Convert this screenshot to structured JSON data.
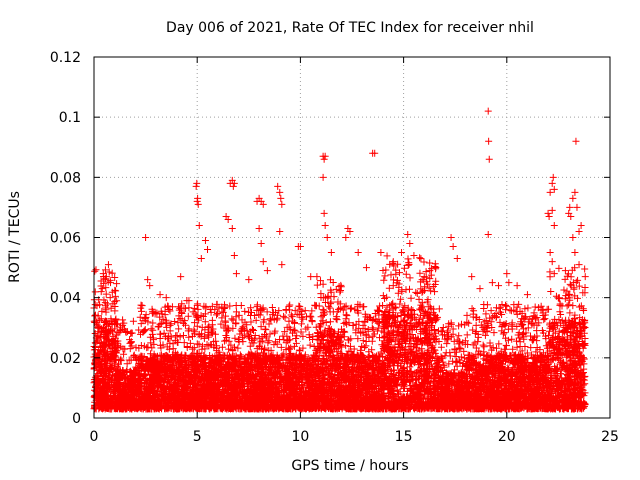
{
  "chart_data": {
    "type": "scatter",
    "title": "Day 006 of 2021, Rate Of TEC Index for receiver nhil",
    "xlabel": "GPS time / hours",
    "ylabel": "ROTI / TECUs",
    "xlim": [
      0,
      25
    ],
    "ylim": [
      0,
      0.12
    ],
    "grid": true,
    "marker": "+",
    "color": "#ff0000",
    "x_ticks": [
      0,
      5,
      10,
      15,
      20,
      25
    ],
    "x_tick_labels": [
      "0",
      "5",
      "10",
      "15",
      "20",
      "25"
    ],
    "y_ticks": [
      0,
      0.02,
      0.04,
      0.06,
      0.08,
      0.1,
      0.12
    ],
    "y_tick_labels": [
      "0",
      "0.02",
      "0.04",
      "0.06",
      "0.08",
      "0.1",
      "0.12"
    ],
    "data_x_range": [
      0,
      23.8
    ],
    "series": [
      {
        "name": "ROTI",
        "points": [
          [
            0.1,
            0.003
          ],
          [
            0.15,
            0.031
          ],
          [
            0.2,
            0.034
          ],
          [
            0.35,
            0.042
          ],
          [
            0.4,
            0.043
          ],
          [
            0.45,
            0.048
          ],
          [
            0.6,
            0.047
          ],
          [
            0.7,
            0.051
          ],
          [
            0.8,
            0.045
          ],
          [
            0.9,
            0.025
          ],
          [
            1.0,
            0.022
          ],
          [
            2.5,
            0.06
          ],
          [
            2.6,
            0.046
          ],
          [
            2.7,
            0.044
          ],
          [
            3.2,
            0.041
          ],
          [
            3.5,
            0.04
          ],
          [
            3.8,
            0.037
          ],
          [
            4.2,
            0.047
          ],
          [
            4.5,
            0.039
          ],
          [
            4.6,
            0.039
          ],
          [
            4.95,
            0.077
          ],
          [
            4.98,
            0.078
          ],
          [
            5.0,
            0.072
          ],
          [
            5.02,
            0.073
          ],
          [
            5.05,
            0.071
          ],
          [
            5.1,
            0.064
          ],
          [
            5.2,
            0.053
          ],
          [
            5.4,
            0.059
          ],
          [
            5.5,
            0.056
          ],
          [
            6.4,
            0.067
          ],
          [
            6.5,
            0.066
          ],
          [
            6.6,
            0.078
          ],
          [
            6.7,
            0.079
          ],
          [
            6.75,
            0.077
          ],
          [
            6.8,
            0.078
          ],
          [
            6.7,
            0.063
          ],
          [
            6.8,
            0.054
          ],
          [
            6.9,
            0.048
          ],
          [
            7.5,
            0.046
          ],
          [
            7.9,
            0.072
          ],
          [
            8.0,
            0.073
          ],
          [
            8.1,
            0.072
          ],
          [
            8.2,
            0.071
          ],
          [
            8.0,
            0.063
          ],
          [
            8.1,
            0.058
          ],
          [
            8.2,
            0.052
          ],
          [
            8.4,
            0.049
          ],
          [
            8.9,
            0.077
          ],
          [
            9.0,
            0.075
          ],
          [
            9.05,
            0.073
          ],
          [
            9.1,
            0.071
          ],
          [
            9.0,
            0.062
          ],
          [
            9.1,
            0.051
          ],
          [
            9.9,
            0.057
          ],
          [
            10.0,
            0.057
          ],
          [
            10.5,
            0.047
          ],
          [
            10.8,
            0.047
          ],
          [
            11.1,
            0.087
          ],
          [
            11.15,
            0.086
          ],
          [
            11.2,
            0.087
          ],
          [
            11.1,
            0.08
          ],
          [
            11.15,
            0.068
          ],
          [
            11.2,
            0.064
          ],
          [
            11.3,
            0.06
          ],
          [
            11.5,
            0.055
          ],
          [
            12.2,
            0.06
          ],
          [
            12.3,
            0.063
          ],
          [
            12.4,
            0.062
          ],
          [
            12.8,
            0.055
          ],
          [
            13.2,
            0.05
          ],
          [
            13.5,
            0.088
          ],
          [
            13.6,
            0.088
          ],
          [
            13.9,
            0.055
          ],
          [
            14.5,
            0.052
          ],
          [
            14.9,
            0.055
          ],
          [
            15.2,
            0.061
          ],
          [
            15.3,
            0.058
          ],
          [
            15.5,
            0.054
          ],
          [
            16.0,
            0.047
          ],
          [
            16.5,
            0.042
          ],
          [
            17.3,
            0.06
          ],
          [
            17.4,
            0.057
          ],
          [
            17.6,
            0.053
          ],
          [
            18.3,
            0.047
          ],
          [
            18.7,
            0.043
          ],
          [
            19.1,
            0.102
          ],
          [
            19.12,
            0.092
          ],
          [
            19.15,
            0.086
          ],
          [
            19.1,
            0.061
          ],
          [
            19.3,
            0.045
          ],
          [
            19.6,
            0.044
          ],
          [
            20.0,
            0.048
          ],
          [
            20.1,
            0.045
          ],
          [
            20.5,
            0.044
          ],
          [
            21.0,
            0.041
          ],
          [
            22.0,
            0.068
          ],
          [
            22.05,
            0.067
          ],
          [
            22.1,
            0.075
          ],
          [
            22.2,
            0.078
          ],
          [
            22.25,
            0.08
          ],
          [
            22.3,
            0.076
          ],
          [
            22.2,
            0.069
          ],
          [
            22.3,
            0.064
          ],
          [
            22.1,
            0.055
          ],
          [
            22.2,
            0.052
          ],
          [
            22.3,
            0.048
          ],
          [
            23.0,
            0.068
          ],
          [
            23.05,
            0.07
          ],
          [
            23.1,
            0.067
          ],
          [
            23.2,
            0.073
          ],
          [
            23.3,
            0.075
          ],
          [
            23.35,
            0.092
          ],
          [
            23.4,
            0.07
          ],
          [
            23.5,
            0.062
          ],
          [
            23.6,
            0.064
          ],
          [
            23.2,
            0.06
          ],
          [
            23.3,
            0.055
          ],
          [
            23.5,
            0.051
          ],
          [
            23.8,
            0.047
          ]
        ]
      }
    ]
  }
}
